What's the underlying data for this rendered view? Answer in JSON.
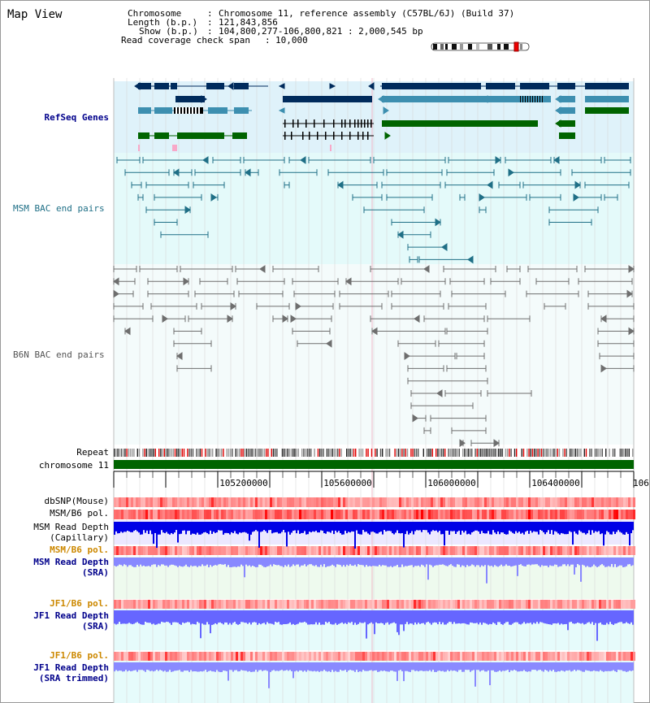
{
  "view_title": "Map View",
  "info": {
    "chromosome_label": "Chromosome",
    "chromosome_value": "Chromosome 11, reference assembly (C57BL/6J) (Build 37)",
    "length_label": "Length (b.p.)",
    "length_value": "121,843,856",
    "show_label": "Show (b.p.)",
    "show_value": "104,800,277-106,800,821 : 2,000,545 bp",
    "coverage_label": "Read coverage check span",
    "coverage_value": "10,000"
  },
  "tracks": {
    "refseq": "RefSeq Genes",
    "msm_bac": "MSM BAC end pairs",
    "b6n_bac": "B6N BAC end pairs",
    "repeat": "Repeat",
    "chromosome": "chromosome 11",
    "dbsnp": "dbSNP(Mouse)",
    "msm_pol": "MSM/B6 pol.",
    "msm_depth_cap_1": "MSM Read Depth",
    "msm_depth_cap_2": "(Capillary)",
    "msm_pol2": "MSM/B6 pol.",
    "msm_depth_sra_1": "MSM Read Depth",
    "msm_depth_sra_2": "(SRA)",
    "jf1_pol": "JF1/B6 pol.",
    "jf1_depth_sra_1": "JF1 Read Depth",
    "jf1_depth_sra_2": "(SRA)",
    "jf1_pol2": "JF1/B6 pol.",
    "jf1_depth_trim_1": "JF1 Read Depth",
    "jf1_depth_trim_2": "(SRA trimmed)"
  },
  "ruler": {
    "ticks": [
      "105200000",
      "105600000",
      "106000000",
      "106400000",
      "106"
    ]
  },
  "colors": {
    "refseq_dark": "#002b5c",
    "refseq_mid": "#3d8fb0",
    "refseq_green": "#006400",
    "bac_msm": "#1f6f86",
    "bac_b6n": "#6e6e6e",
    "chromosome": "#006400",
    "label_blue": "#00008b",
    "label_orange": "#cc8800"
  }
}
